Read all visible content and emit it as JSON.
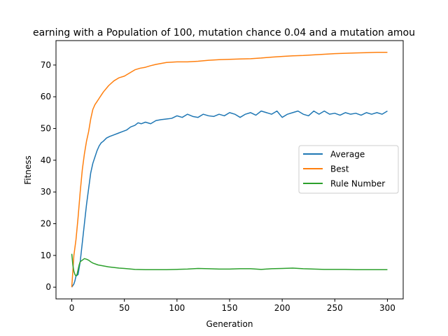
{
  "chart_data": {
    "type": "line",
    "title": "earning with a Population of 100, mutation chance 0.04 and a mutation amou",
    "xlabel": "Generation",
    "ylabel": "Fitness",
    "xlim": [
      -15,
      315
    ],
    "ylim": [
      -3.7,
      77.7
    ],
    "xticks": [
      0,
      50,
      100,
      150,
      200,
      250,
      300
    ],
    "yticks": [
      0,
      10,
      20,
      30,
      40,
      50,
      60,
      70
    ],
    "grid": false,
    "legend_position": "center-right",
    "series": [
      {
        "name": "Average",
        "color": "#1f77b4",
        "x": [
          0,
          2,
          3,
          4,
          6,
          8,
          10,
          12,
          14,
          16,
          18,
          20,
          22,
          24,
          26,
          28,
          30,
          33,
          36,
          40,
          44,
          48,
          52,
          56,
          60,
          63,
          66,
          70,
          75,
          80,
          85,
          90,
          95,
          100,
          105,
          110,
          115,
          120,
          125,
          130,
          135,
          140,
          145,
          150,
          155,
          160,
          165,
          170,
          175,
          180,
          185,
          190,
          195,
          200,
          205,
          210,
          215,
          220,
          225,
          230,
          235,
          240,
          245,
          250,
          255,
          260,
          265,
          270,
          275,
          280,
          285,
          290,
          295,
          300
        ],
        "y": [
          0,
          1,
          2,
          3.5,
          4,
          8,
          14,
          20,
          26,
          31,
          36,
          39,
          41,
          43,
          44.5,
          45.5,
          46,
          47,
          47.5,
          48,
          48.5,
          49,
          49.5,
          50.5,
          51,
          51.8,
          51.5,
          52,
          51.5,
          52.5,
          52.8,
          53,
          53.2,
          54,
          53.5,
          54.5,
          53.8,
          53.5,
          54.5,
          54,
          53.8,
          54.5,
          54,
          55,
          54.5,
          53.5,
          54.5,
          55,
          54.2,
          55.5,
          55,
          54.5,
          55.5,
          53.5,
          54.5,
          55,
          55.5,
          54.5,
          54,
          55.5,
          54.5,
          55.5,
          54.5,
          54.8,
          54.2,
          55,
          54.5,
          54.8,
          54.2,
          55,
          54.5,
          55,
          54.5,
          55.5
        ]
      },
      {
        "name": "Best",
        "color": "#ff7f0e",
        "x": [
          0,
          2,
          4,
          6,
          8,
          10,
          12,
          14,
          16,
          18,
          20,
          22,
          24,
          26,
          28,
          30,
          35,
          40,
          45,
          50,
          55,
          60,
          65,
          70,
          75,
          80,
          85,
          90,
          100,
          110,
          120,
          130,
          140,
          150,
          160,
          170,
          180,
          190,
          200,
          210,
          220,
          230,
          240,
          250,
          260,
          270,
          280,
          290,
          300
        ],
        "y": [
          0,
          10,
          15,
          22,
          30,
          37,
          42,
          46,
          49,
          53,
          56,
          57.5,
          58.5,
          59.5,
          60.5,
          61.5,
          63.5,
          65,
          66,
          66.5,
          67.5,
          68.5,
          69,
          69.3,
          69.8,
          70.2,
          70.5,
          70.8,
          71,
          71,
          71.2,
          71.5,
          71.7,
          71.8,
          71.9,
          72,
          72.2,
          72.5,
          72.7,
          72.9,
          73,
          73.2,
          73.4,
          73.6,
          73.7,
          73.8,
          73.9,
          74,
          74
        ]
      },
      {
        "name": "Rule Number",
        "color": "#2ca02c",
        "x": [
          0,
          1,
          2,
          3,
          4,
          5,
          6,
          7,
          8,
          10,
          12,
          14,
          16,
          18,
          20,
          25,
          30,
          35,
          40,
          45,
          50,
          60,
          70,
          80,
          90,
          100,
          110,
          120,
          130,
          140,
          150,
          160,
          170,
          180,
          190,
          200,
          210,
          220,
          230,
          240,
          250,
          260,
          270,
          280,
          290,
          300
        ],
        "y": [
          10.5,
          7,
          5,
          4,
          3.5,
          4,
          5.5,
          7,
          8,
          8.5,
          9,
          8.8,
          8.5,
          8,
          7.6,
          7,
          6.7,
          6.4,
          6.2,
          6,
          5.9,
          5.6,
          5.5,
          5.5,
          5.5,
          5.6,
          5.7,
          5.9,
          5.8,
          5.7,
          5.7,
          5.8,
          5.8,
          5.6,
          5.8,
          5.9,
          6,
          5.8,
          5.7,
          5.6,
          5.6,
          5.6,
          5.5,
          5.5,
          5.5,
          5.5
        ]
      }
    ]
  }
}
